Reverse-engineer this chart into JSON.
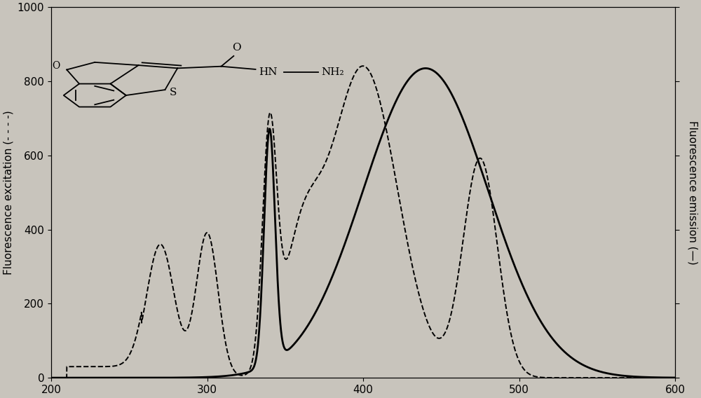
{
  "xlim": [
    200,
    600
  ],
  "ylim_left": [
    0,
    1000
  ],
  "ylim_right": [
    0,
    1000
  ],
  "xticks": [
    200,
    300,
    400,
    500,
    600
  ],
  "yticks": [
    0,
    200,
    400,
    600,
    800,
    1000
  ],
  "ylabel_left": "Fluorescence excitation (- - - -)",
  "ylabel_right": "Fluorescence emission (—)",
  "background_color": "#c8c4bc",
  "plot_bg_color": "#c8c4bc",
  "line_color": "#000000",
  "figsize": [
    10.0,
    5.68
  ],
  "dpi": 100
}
